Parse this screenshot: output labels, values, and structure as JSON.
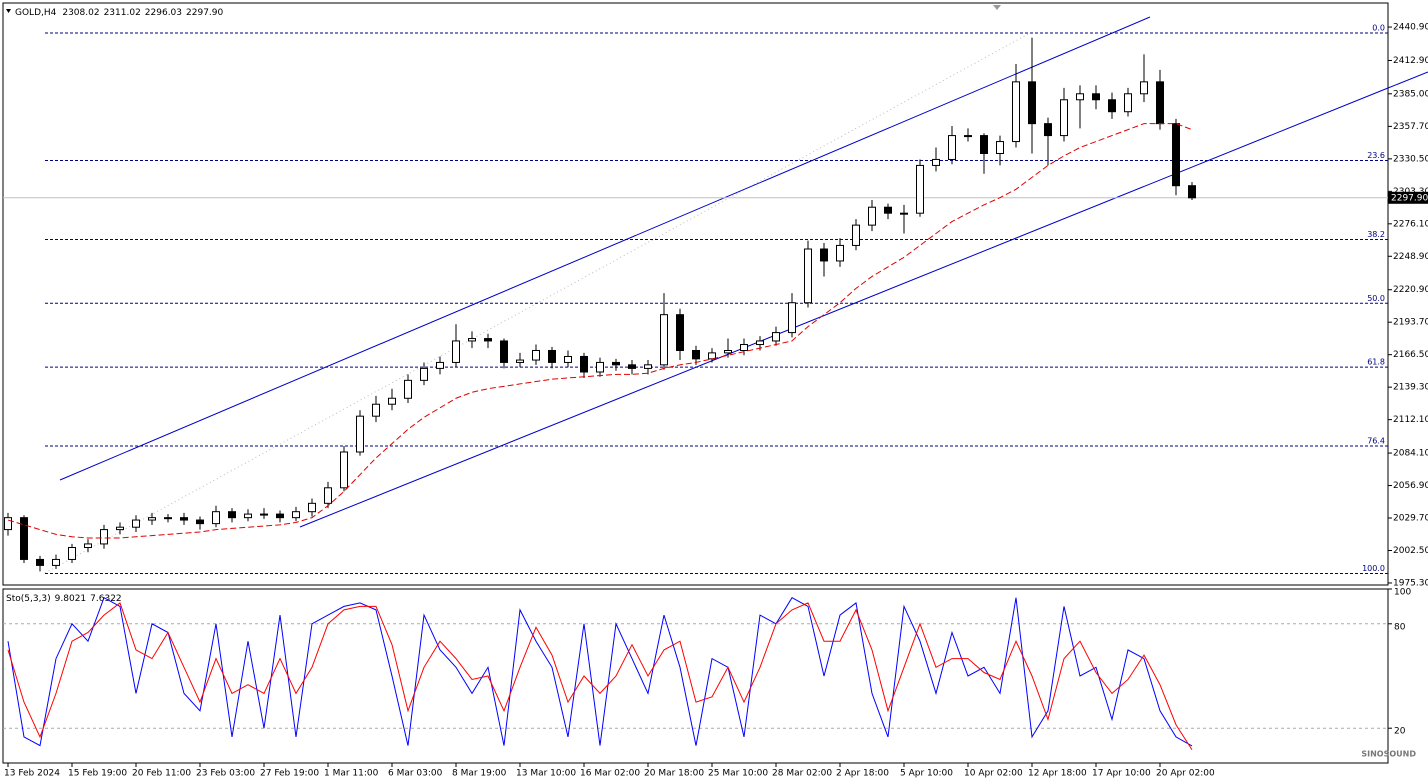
{
  "chart_data": [
    {
      "type": "candlestick",
      "symbol": "GOLD,H4",
      "categories": [
        "13 Feb 2024",
        null,
        null,
        null,
        "15 Feb 19:00",
        null,
        null,
        null,
        "20 Feb 11:00",
        null,
        null,
        null,
        "23 Feb 03:00",
        null,
        null,
        null,
        "27 Feb 19:00",
        null,
        null,
        null,
        "1 Mar 11:00",
        null,
        null,
        null,
        "6 Mar 03:00",
        null,
        null,
        null,
        "8 Mar 19:00",
        null,
        null,
        null,
        "13 Mar 10:00",
        null,
        null,
        null,
        "16 Mar 02:00",
        null,
        null,
        null,
        "20 Mar 18:00",
        null,
        null,
        null,
        "25 Mar 10:00",
        null,
        null,
        null,
        "28 Mar 02:00",
        null,
        null,
        null,
        "2 Apr 18:00",
        null,
        null,
        null,
        "5 Apr 10:00",
        null,
        null,
        null,
        "10 Apr 02:00",
        null,
        null,
        null,
        "12 Apr 18:00",
        null,
        null,
        null,
        "17 Apr 10:00",
        null,
        null,
        null,
        "20 Apr 02:00",
        null,
        null
      ],
      "open": [
        2020,
        2030,
        1995,
        1990,
        1995,
        2005,
        2008,
        2020,
        2022,
        2028,
        2030,
        2030,
        2028,
        2025,
        2035,
        2030,
        2033,
        2033,
        2030,
        2035,
        2042,
        2055,
        2085,
        2115,
        2125,
        2130,
        2145,
        2155,
        2160,
        2178,
        2180,
        2178,
        2160,
        2162,
        2170,
        2160,
        2165,
        2152,
        2160,
        2158,
        2155,
        2158,
        2200,
        2170,
        2163,
        2168,
        2170,
        2175,
        2178,
        2185,
        2210,
        2255,
        2245,
        2258,
        2275,
        2290,
        2285,
        2285,
        2325,
        2330,
        2350,
        2350,
        2335,
        2345,
        2395,
        2360,
        2350,
        2380,
        2385,
        2380,
        2370,
        2385,
        2395,
        2360,
        2308.02
      ],
      "high": [
        2034,
        2032,
        1998,
        1999,
        2008,
        2012,
        2024,
        2026,
        2032,
        2034,
        2033,
        2034,
        2031,
        2040,
        2038,
        2037,
        2038,
        2036,
        2039,
        2046,
        2060,
        2090,
        2120,
        2132,
        2138,
        2150,
        2160,
        2165,
        2192,
        2186,
        2184,
        2180,
        2168,
        2175,
        2173,
        2170,
        2168,
        2164,
        2163,
        2162,
        2162,
        2218,
        2205,
        2174,
        2172,
        2180,
        2180,
        2182,
        2190,
        2218,
        2262,
        2260,
        2264,
        2280,
        2296,
        2293,
        2292,
        2330,
        2340,
        2358,
        2356,
        2352,
        2350,
        2410,
        2432,
        2365,
        2390,
        2392,
        2392,
        2386,
        2390,
        2418,
        2405,
        2364,
        2311.02
      ],
      "low": [
        2015,
        1992,
        1985,
        1987,
        1992,
        2001,
        2004,
        2016,
        2018,
        2024,
        2026,
        2024,
        2020,
        2022,
        2026,
        2027,
        2029,
        2026,
        2027,
        2031,
        2038,
        2052,
        2082,
        2110,
        2120,
        2126,
        2141,
        2150,
        2156,
        2172,
        2172,
        2155,
        2156,
        2158,
        2155,
        2156,
        2147,
        2148,
        2153,
        2150,
        2150,
        2154,
        2162,
        2158,
        2160,
        2164,
        2166,
        2170,
        2174,
        2181,
        2206,
        2232,
        2240,
        2254,
        2270,
        2280,
        2268,
        2282,
        2320,
        2326,
        2345,
        2318,
        2325,
        2340,
        2335,
        2325,
        2345,
        2356,
        2372,
        2364,
        2366,
        2378,
        2355,
        2300,
        2296.03
      ],
      "close": [
        2030,
        1995,
        1990,
        1995,
        2005,
        2008,
        2020,
        2022,
        2028,
        2030,
        2030,
        2028,
        2025,
        2035,
        2030,
        2033,
        2033,
        2030,
        2035,
        2042,
        2055,
        2085,
        2115,
        2125,
        2130,
        2145,
        2155,
        2160,
        2178,
        2180,
        2178,
        2160,
        2162,
        2170,
        2160,
        2165,
        2152,
        2160,
        2158,
        2155,
        2158,
        2200,
        2170,
        2163,
        2168,
        2170,
        2175,
        2178,
        2185,
        2210,
        2255,
        2245,
        2258,
        2275,
        2290,
        2285,
        2285,
        2325,
        2330,
        2350,
        2350,
        2335,
        2345,
        2395,
        2360,
        2350,
        2380,
        2385,
        2380,
        2370,
        2385,
        2395,
        2360,
        2308.02,
        2297.9
      ],
      "ma": {
        "color": "#e00000",
        "values": [
          2028,
          2024,
          2020,
          2016,
          2014,
          2013,
          2013,
          2013,
          2014,
          2015,
          2016,
          2017,
          2018,
          2020,
          2021,
          2022,
          2023,
          2024,
          2026,
          2030,
          2040,
          2052,
          2066,
          2080,
          2092,
          2104,
          2114,
          2122,
          2130,
          2135,
          2138,
          2140,
          2142,
          2144,
          2146,
          2147,
          2148,
          2149,
          2150,
          2150,
          2151,
          2155,
          2158,
          2160,
          2163,
          2166,
          2169,
          2172,
          2175,
          2178,
          2190,
          2200,
          2210,
          2222,
          2232,
          2240,
          2248,
          2258,
          2268,
          2278,
          2285,
          2292,
          2298,
          2305,
          2315,
          2325,
          2333,
          2340,
          2345,
          2350,
          2355,
          2360,
          2360,
          2360,
          2355
        ]
      },
      "last_price": {
        "value": 2297.9,
        "label": "2297.90"
      },
      "ylim": [
        1973.6,
        2460.2
      ],
      "yticks": [
        {
          "value": 2440.9,
          "label": "2440.90"
        },
        {
          "value": 2412.9,
          "label": "2412.90"
        },
        {
          "value": 2385,
          "label": "2385.00"
        },
        {
          "value": 2357.7,
          "label": "2357.70"
        },
        {
          "value": 2330.5,
          "label": "2330.50"
        },
        {
          "value": 2303.3,
          "label": "2303.30"
        },
        {
          "value": 2276.1,
          "label": "2276.10"
        },
        {
          "value": 2248.9,
          "label": "2248.90"
        },
        {
          "value": 2220.9,
          "label": "2220.90"
        },
        {
          "value": 2193.7,
          "label": "2193.70"
        },
        {
          "value": 2166.5,
          "label": "2166.50"
        },
        {
          "value": 2139.3,
          "label": "2139.30"
        },
        {
          "value": 2112.1,
          "label": "2112.10"
        },
        {
          "value": 2084.1,
          "label": "2084.10"
        },
        {
          "value": 2056.9,
          "label": "2056.90"
        },
        {
          "value": 2029.7,
          "label": "2029.70"
        },
        {
          "value": 2002.5,
          "label": "2002.50"
        },
        {
          "value": 1975.3,
          "label": "1975.30"
        }
      ],
      "fib_levels": [
        {
          "label": "0.0",
          "value": 2435.9
        },
        {
          "label": "23.6",
          "value": 2329.1
        },
        {
          "label": "38.2",
          "value": 2263.0
        },
        {
          "label": "50.0",
          "value": 2209.55
        },
        {
          "label": "61.8",
          "value": 2156.1
        },
        {
          "label": "76.4",
          "value": 2090.0
        },
        {
          "label": "100.0",
          "value": 1983.2
        }
      ],
      "fib_color": "#000080"
    },
    {
      "type": "line",
      "title": "Sto(5,3,3)",
      "series": [
        {
          "color": "#0000ff",
          "values": [
            70,
            15,
            10,
            60,
            80,
            70,
            95,
            90,
            40,
            80,
            75,
            40,
            30,
            80,
            15,
            70,
            20,
            85,
            15,
            80,
            85,
            90,
            92,
            88,
            50,
            10,
            85,
            65,
            55,
            40,
            55,
            10,
            88,
            70,
            55,
            15,
            80,
            10,
            80,
            60,
            40,
            85,
            55,
            10,
            60,
            55,
            15,
            85,
            80,
            95,
            90,
            50,
            85,
            92,
            40,
            15,
            90,
            70,
            40,
            75,
            50,
            55,
            40,
            95,
            15,
            30,
            90,
            50,
            55,
            25,
            65,
            60,
            30,
            15,
            9.8021
          ]
        },
        {
          "color": "#ff0000",
          "values": [
            65,
            35,
            15,
            40,
            70,
            75,
            85,
            92,
            65,
            60,
            75,
            55,
            35,
            60,
            40,
            45,
            40,
            60,
            40,
            55,
            80,
            88,
            90,
            90,
            68,
            30,
            55,
            70,
            60,
            48,
            50,
            30,
            55,
            78,
            62,
            35,
            50,
            40,
            50,
            68,
            50,
            65,
            70,
            35,
            38,
            55,
            35,
            55,
            80,
            88,
            92,
            70,
            70,
            88,
            65,
            30,
            55,
            80,
            55,
            60,
            60,
            52,
            48,
            70,
            50,
            25,
            60,
            70,
            52,
            40,
            48,
            62,
            45,
            22,
            7.6322
          ]
        }
      ],
      "ylim": [
        0,
        100
      ],
      "yticks": [
        100,
        80,
        20
      ],
      "levels": [
        80,
        20
      ]
    }
  ],
  "watermark": "SINOSOUND"
}
